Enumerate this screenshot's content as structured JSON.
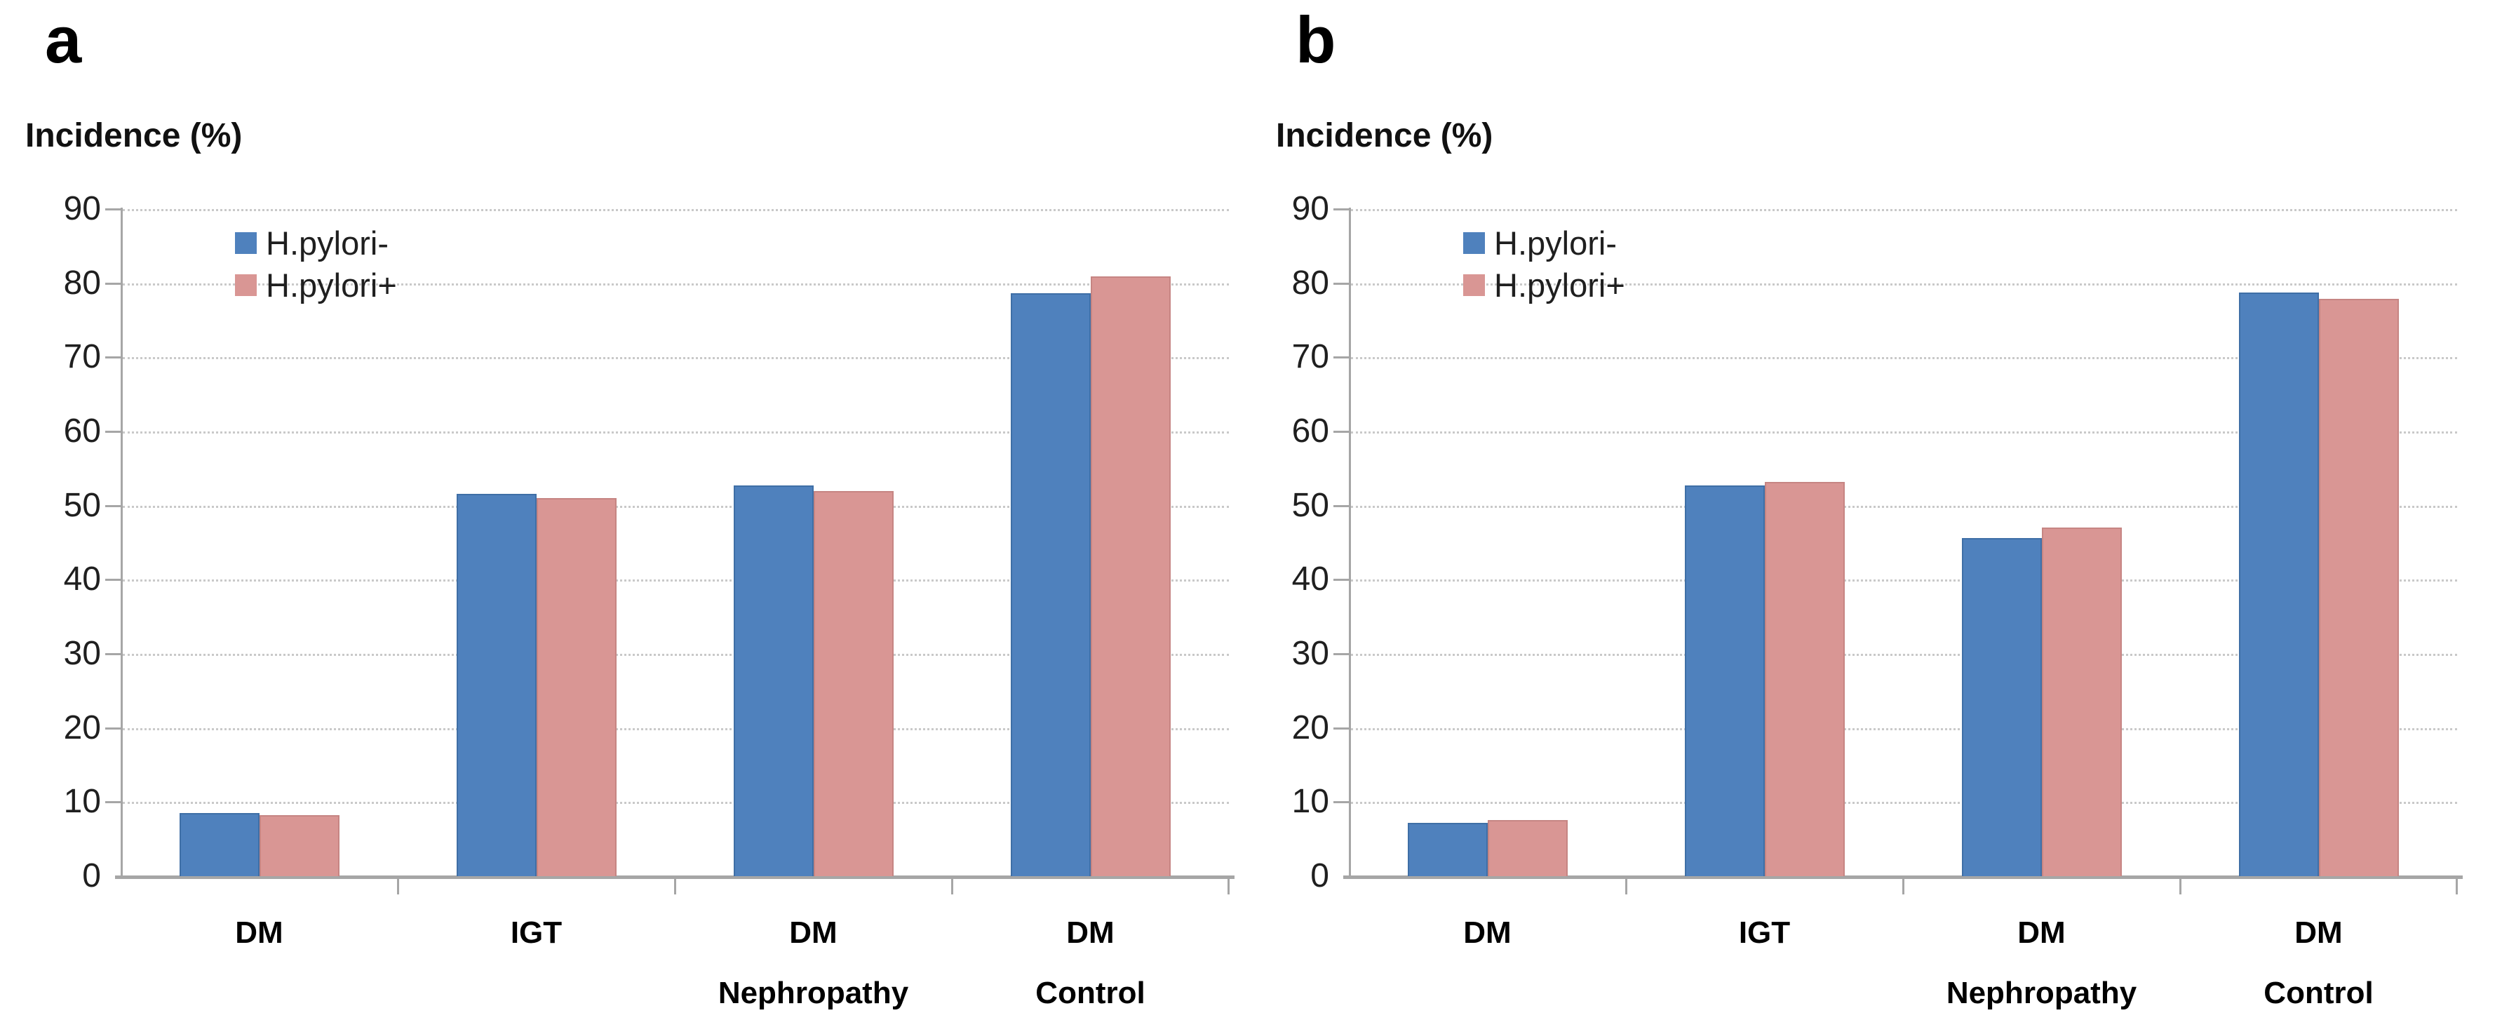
{
  "figure": {
    "panel_labels": [
      "a",
      "b"
    ]
  },
  "chart_data": [
    {
      "panel_label": "a",
      "type": "bar",
      "title": "Incidence (%)",
      "categories": [
        [
          "DM"
        ],
        [
          "IGT"
        ],
        [
          "DM",
          "Nephropathy"
        ],
        [
          "DM",
          "Control"
        ]
      ],
      "series": [
        {
          "name": "H.pylori-",
          "color": "#4F81BD",
          "border": "#3F6FA6",
          "values": [
            8.5,
            51.6,
            52.7,
            78.6
          ]
        },
        {
          "name": "H.pylori+",
          "color": "#D99694",
          "border": "#C68583",
          "values": [
            8.2,
            51.0,
            52.0,
            80.9
          ]
        }
      ],
      "ylim": [
        0,
        90
      ],
      "ytick_step": 10,
      "grid": "horizontal-dotted",
      "legend_position": "top-left-inside"
    },
    {
      "panel_label": "b",
      "type": "bar",
      "title": "Incidence (%)",
      "categories": [
        [
          "DM"
        ],
        [
          "IGT"
        ],
        [
          "DM",
          "Nephropathy"
        ],
        [
          "DM",
          "Control"
        ]
      ],
      "series": [
        {
          "name": "H.pylori-",
          "color": "#4F81BD",
          "border": "#3F6FA6",
          "values": [
            7.2,
            52.7,
            45.6,
            78.7
          ]
        },
        {
          "name": "H.pylori+",
          "color": "#D99694",
          "border": "#C68583",
          "values": [
            7.6,
            53.2,
            47.0,
            77.9
          ]
        }
      ],
      "ylim": [
        0,
        90
      ],
      "ytick_step": 10,
      "grid": "horizontal-dotted",
      "legend_position": "top-left-inside"
    }
  ],
  "axis_colors": {
    "axis_line": "#A6A6A6",
    "gridline": "#C9C9C9",
    "text": "#1F1F1F"
  }
}
